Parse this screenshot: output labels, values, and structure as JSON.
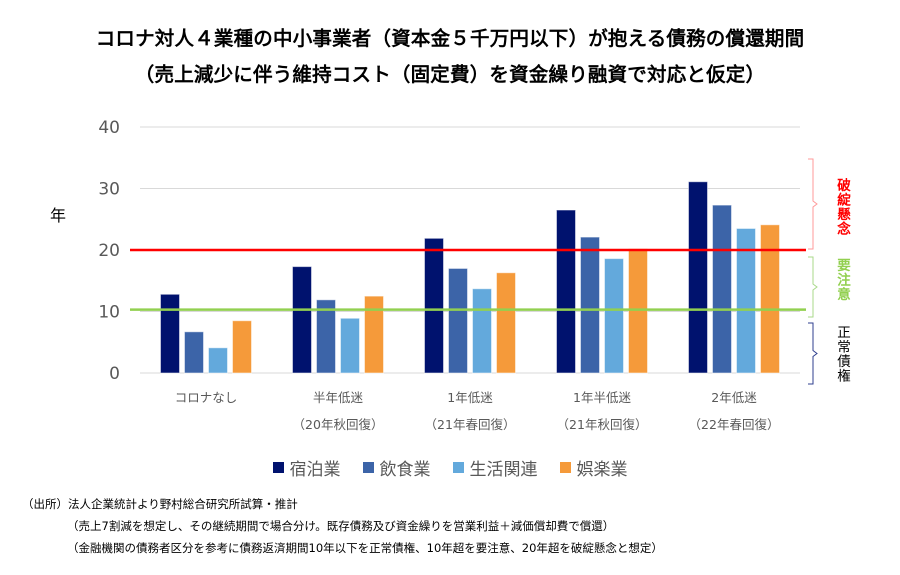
{
  "title": {
    "line1": "コロナ対人４業種の中小事業者（資本金５千万円以下）が抱える債務の償還期間",
    "line2": "（売上減少に伴う維持コスト（固定費）を資金繰り融資で対応と仮定）"
  },
  "chart_data": {
    "type": "bar",
    "title": "コロナ対人４業種の中小事業者（資本金５千万円以下）が抱える債務の償還期間（売上減少に伴う維持コスト（固定費）を資金繰り融資で対応と仮定）",
    "xlabel": "",
    "ylabel": "年",
    "ylim": [
      0,
      40
    ],
    "yticks": [
      "0",
      "10",
      "20",
      "30",
      "40"
    ],
    "grid": true,
    "legend_position": "bottom",
    "categories": [
      {
        "line1": "コロナなし",
        "line2": ""
      },
      {
        "line1": "半年低迷",
        "line2": "（20年秋回復）"
      },
      {
        "line1": "1年低迷",
        "line2": "（21年春回復）"
      },
      {
        "line1": "1年半低迷",
        "line2": "（21年秋回復）"
      },
      {
        "line1": "2年低迷",
        "line2": "（22年春回復）"
      }
    ],
    "series": [
      {
        "name": "宿泊業",
        "color": "#00126e",
        "values": [
          12.8,
          17.3,
          21.9,
          26.5,
          31.1
        ]
      },
      {
        "name": "飲食業",
        "color": "#3c64a8",
        "values": [
          6.7,
          11.9,
          17.0,
          22.1,
          27.3
        ]
      },
      {
        "name": "生活関連",
        "color": "#63a9dc",
        "values": [
          4.1,
          8.9,
          13.7,
          18.6,
          23.5
        ]
      },
      {
        "name": "娯楽業",
        "color": "#f59a3a",
        "values": [
          8.5,
          12.5,
          16.3,
          20.2,
          24.1
        ]
      }
    ],
    "reference_lines": [
      {
        "name": "破綻懸念ライン",
        "value": 20,
        "color": "#ff0000"
      },
      {
        "name": "要注意ライン",
        "value": 10.3,
        "color": "#92d050"
      }
    ],
    "zones": [
      {
        "label": "破綻懸念",
        "range": [
          20,
          35
        ],
        "color": "#ff0000"
      },
      {
        "label": "要注意",
        "range": [
          10,
          19
        ],
        "color": "#92d050"
      },
      {
        "label": "正常債権",
        "range": [
          0,
          9
        ],
        "color": "#000000",
        "bracket_color": "#2f3f8f"
      }
    ]
  },
  "notes": {
    "source": "（出所）法人企業統計より野村総合研究所試算・推計",
    "line2": "（売上7割減を想定し、その継続期間で場合分け。既存債務及び資金繰りを営業利益＋減価償却費で償還）",
    "line3": "（金融機関の債務者区分を参考に債務返済期間10年以下を正常債権、10年超を要注意、20年超を破綻懸念と想定）"
  }
}
